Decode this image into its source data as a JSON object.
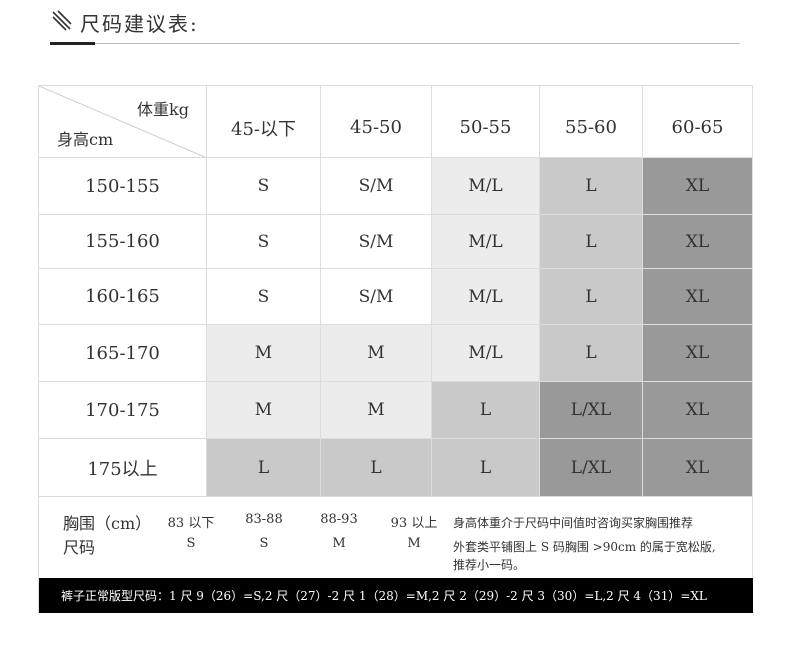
{
  "header": {
    "title": "尺码建议表:"
  },
  "table": {
    "corner_top": "体重kg",
    "corner_bottom": "身高cm",
    "columns": [
      "45-以下",
      "45-50",
      "50-55",
      "55-60",
      "60-65"
    ],
    "rows": [
      {
        "height": "150-155",
        "cells": [
          {
            "size": "S",
            "color": "#ffffff"
          },
          {
            "size": "S/M",
            "color": "#ffffff"
          },
          {
            "size": "M/L",
            "color": "#ececec"
          },
          {
            "size": "L",
            "color": "#c9c9c9"
          },
          {
            "size": "XL",
            "color": "#999999"
          }
        ]
      },
      {
        "height": "155-160",
        "cells": [
          {
            "size": "S",
            "color": "#ffffff"
          },
          {
            "size": "S/M",
            "color": "#ffffff"
          },
          {
            "size": "M/L",
            "color": "#ececec"
          },
          {
            "size": "L",
            "color": "#c9c9c9"
          },
          {
            "size": "XL",
            "color": "#999999"
          }
        ]
      },
      {
        "height": "160-165",
        "cells": [
          {
            "size": "S",
            "color": "#ffffff"
          },
          {
            "size": "S/M",
            "color": "#ffffff"
          },
          {
            "size": "M/L",
            "color": "#ececec"
          },
          {
            "size": "L",
            "color": "#c9c9c9"
          },
          {
            "size": "XL",
            "color": "#999999"
          }
        ]
      },
      {
        "height": "165-170",
        "cells": [
          {
            "size": "M",
            "color": "#ececec"
          },
          {
            "size": "M",
            "color": "#ececec"
          },
          {
            "size": "M/L",
            "color": "#ececec"
          },
          {
            "size": "L",
            "color": "#c9c9c9"
          },
          {
            "size": "XL",
            "color": "#999999"
          }
        ]
      },
      {
        "height": "170-175",
        "cells": [
          {
            "size": "M",
            "color": "#ececec"
          },
          {
            "size": "M",
            "color": "#ececec"
          },
          {
            "size": "L",
            "color": "#c9c9c9"
          },
          {
            "size": "L/XL",
            "color": "#999999"
          },
          {
            "size": "XL",
            "color": "#999999"
          }
        ]
      },
      {
        "height": "175以上",
        "cells": [
          {
            "size": "L",
            "color": "#c9c9c9"
          },
          {
            "size": "L",
            "color": "#c9c9c9"
          },
          {
            "size": "L",
            "color": "#c9c9c9"
          },
          {
            "size": "L/XL",
            "color": "#999999"
          },
          {
            "size": "XL",
            "color": "#999999"
          }
        ]
      }
    ]
  },
  "chest": {
    "label": "胸围（cm）",
    "size_label": "尺码",
    "columns": [
      {
        "range": "83 以下",
        "size": "S"
      },
      {
        "range": "83-88",
        "size": "S"
      },
      {
        "range": "88-93",
        "size": "M"
      },
      {
        "range": "93 以上",
        "size": "M"
      }
    ],
    "notes": [
      "身高体重介于尺码中间值时咨询买家胸围推荐",
      "外套类平铺图上 S 码胸围 >90cm 的属于宽松版,",
      "推荐小一码。"
    ]
  },
  "footer": {
    "text": "裤子正常版型尺码：1 尺 9（26）=S,2 尺（27）-2 尺 1（28）=M,2 尺 2（29）-2 尺 3（30）=L,2 尺 4（31）=XL"
  }
}
